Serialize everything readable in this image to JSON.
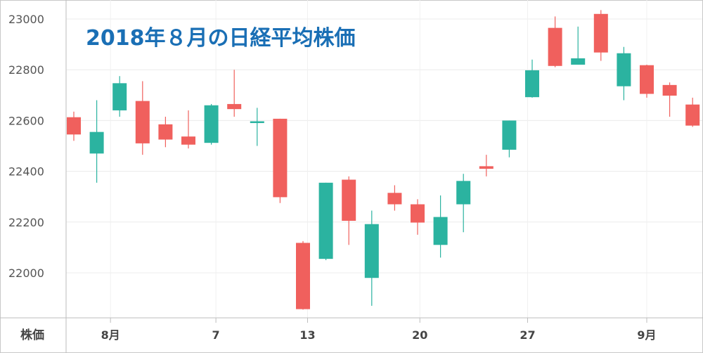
{
  "chart_data": {
    "type": "candlestick",
    "title": "2018年８月の日経平均株価",
    "series_label": "株価",
    "ylim": [
      21850,
      23050
    ],
    "y_ticks": [
      22000,
      22200,
      22400,
      22600,
      22800,
      23000
    ],
    "x_tick_labels": [
      "8月",
      "7",
      "13",
      "20",
      "27",
      "9月"
    ],
    "grid": true,
    "colors": {
      "up": "#2bb3a0",
      "down": "#f0605d",
      "title": "#1a6fb5"
    },
    "candles": [
      {
        "date": "2018-08-01",
        "open": 22613,
        "high": 22635,
        "low": 22520,
        "close": 22545
      },
      {
        "date": "2018-08-02",
        "open": 22470,
        "high": 22680,
        "low": 22355,
        "close": 22555
      },
      {
        "date": "2018-08-03",
        "open": 22640,
        "high": 22775,
        "low": 22615,
        "close": 22747
      },
      {
        "date": "2018-08-06",
        "open": 22677,
        "high": 22755,
        "low": 22465,
        "close": 22510
      },
      {
        "date": "2018-08-07",
        "open": 22585,
        "high": 22615,
        "low": 22495,
        "close": 22525
      },
      {
        "date": "2018-08-08",
        "open": 22537,
        "high": 22640,
        "low": 22490,
        "close": 22505
      },
      {
        "date": "2018-08-09",
        "open": 22512,
        "high": 22665,
        "low": 22505,
        "close": 22660
      },
      {
        "date": "2018-08-10",
        "open": 22665,
        "high": 22800,
        "low": 22615,
        "close": 22645
      },
      {
        "date": "2018-08-13",
        "open": 22590,
        "high": 22650,
        "low": 22500,
        "close": 22597
      },
      {
        "date": "2018-08-14",
        "open": 22607,
        "high": 22607,
        "low": 22275,
        "close": 22298
      },
      {
        "date": "2018-08-15",
        "open": 22118,
        "high": 22125,
        "low": 21855,
        "close": 21857
      },
      {
        "date": "2018-08-16",
        "open": 22055,
        "high": 22355,
        "low": 22050,
        "close": 22355
      },
      {
        "date": "2018-08-17",
        "open": 22367,
        "high": 22380,
        "low": 22110,
        "close": 22205
      },
      {
        "date": "2018-08-20",
        "open": 21980,
        "high": 22245,
        "low": 21870,
        "close": 22192
      },
      {
        "date": "2018-08-21",
        "open": 22315,
        "high": 22345,
        "low": 22245,
        "close": 22270
      },
      {
        "date": "2018-08-22",
        "open": 22270,
        "high": 22290,
        "low": 22150,
        "close": 22198
      },
      {
        "date": "2018-08-23",
        "open": 22110,
        "high": 22305,
        "low": 22060,
        "close": 22220
      },
      {
        "date": "2018-08-24",
        "open": 22270,
        "high": 22390,
        "low": 22160,
        "close": 22362
      },
      {
        "date": "2018-08-27",
        "open": 22420,
        "high": 22465,
        "low": 22380,
        "close": 22410
      },
      {
        "date": "2018-08-28",
        "open": 22485,
        "high": 22600,
        "low": 22455,
        "close": 22600
      },
      {
        "date": "2018-08-29",
        "open": 22692,
        "high": 22840,
        "low": 22690,
        "close": 22798
      },
      {
        "date": "2018-08-30",
        "open": 22965,
        "high": 23010,
        "low": 22810,
        "close": 22815
      },
      {
        "date": "2018-08-31",
        "open": 22820,
        "high": 22970,
        "low": 22820,
        "close": 22845
      },
      {
        "date": "2018-09-03",
        "open": 23020,
        "high": 23035,
        "low": 22835,
        "close": 22868
      },
      {
        "date": "2018-09-04",
        "open": 22735,
        "high": 22890,
        "low": 22680,
        "close": 22865
      },
      {
        "date": "2018-09-05",
        "open": 22818,
        "high": 22820,
        "low": 22690,
        "close": 22705
      },
      {
        "date": "2018-09-06",
        "open": 22740,
        "high": 22750,
        "low": 22615,
        "close": 22698
      },
      {
        "date": "2018-09-07",
        "open": 22663,
        "high": 22690,
        "low": 22575,
        "close": 22580
      }
    ]
  }
}
